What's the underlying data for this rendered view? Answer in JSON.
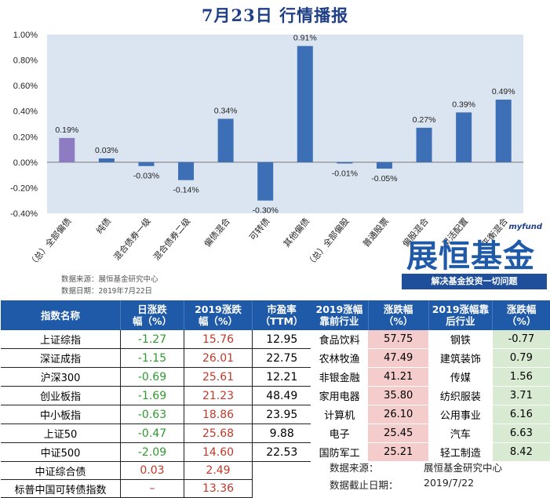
{
  "title": "7月23日  行情播报",
  "chart_data": {
    "type": "bar",
    "categories": [
      "（总）全部偏债",
      "纯债",
      "混合债券一级",
      "混合债券二级",
      "偏债混合",
      "可转债",
      "其他偏债",
      "（总）全部偏股",
      "普通股票",
      "偏股混合",
      "灵活配置",
      "平衡混合"
    ],
    "values": [
      0.19,
      0.03,
      -0.03,
      -0.14,
      0.34,
      -0.3,
      0.91,
      -0.01,
      -0.05,
      0.27,
      0.39,
      0.49
    ],
    "data_labels": [
      "0.19%",
      "0.03%",
      "-0.03%",
      "-0.14%",
      "0.34%",
      "-0.30%",
      "0.91%",
      "-0.01%",
      "-0.05%",
      "0.27%",
      "0.39%",
      "0.49%"
    ],
    "bar_colors": [
      "#8e7cc3",
      "#3d6fb6",
      "#3d6fb6",
      "#3d6fb6",
      "#3d6fb6",
      "#3d6fb6",
      "#3d6fb6",
      "#3d6fb6",
      "#3d6fb6",
      "#3d6fb6",
      "#3d6fb6",
      "#3d6fb6"
    ],
    "yticks": [
      "1.00%",
      "0.80%",
      "0.60%",
      "0.40%",
      "0.20%",
      "0.00%",
      "-0.20%",
      "-0.40%"
    ],
    "ylim": [
      -0.4,
      1.0
    ],
    "plot_bg": "#dbe5f1"
  },
  "notes": {
    "source": "数据来源：展恒基金研究中心",
    "date": "数据日期：2019年7月22日"
  },
  "logo": {
    "small": "myfund",
    "main": "展恒基金",
    "slogan": "解决基金投资一切问题"
  },
  "index_table": {
    "headers": [
      "指数名称",
      "日涨跌\n幅（%）",
      "2019涨跌\n幅（%）",
      "市盈率\n（TTM）"
    ],
    "rows": [
      {
        "name": "上证综指",
        "day": "-1.27",
        "year": "15.76",
        "pe": "12.95"
      },
      {
        "name": "深证成指",
        "day": "-1.15",
        "year": "26.01",
        "pe": "22.75"
      },
      {
        "name": "沪深300",
        "day": "-0.69",
        "year": "25.61",
        "pe": "12.21"
      },
      {
        "name": "创业板指",
        "day": "-1.69",
        "year": "21.23",
        "pe": "48.49"
      },
      {
        "name": "中小板指",
        "day": "-0.63",
        "year": "18.86",
        "pe": "23.95"
      },
      {
        "name": "上证50",
        "day": "-0.47",
        "year": "25.68",
        "pe": "9.88"
      },
      {
        "name": "中证500",
        "day": "-2.09",
        "year": "14.60",
        "pe": "22.53"
      }
    ],
    "bond_rows": [
      {
        "name": "中证综合债",
        "day": "0.03",
        "year": "2.49"
      },
      {
        "name": "标普中国可转债指数",
        "day": "–",
        "year": "13.36"
      }
    ]
  },
  "industry_table": {
    "headers": [
      "2019涨幅\n靠前行业",
      "涨跌幅\n（%）",
      "2019涨幅靠\n后行业",
      "涨跌幅\n（%）"
    ],
    "rows": [
      {
        "top": "食品饮料",
        "top_v": "57.75",
        "bottom": "钢铁",
        "bottom_v": "-0.77"
      },
      {
        "top": "农林牧渔",
        "top_v": "47.49",
        "bottom": "建筑装饰",
        "bottom_v": "0.79"
      },
      {
        "top": "非银金融",
        "top_v": "41.21",
        "bottom": "传媒",
        "bottom_v": "1.56"
      },
      {
        "top": "家用电器",
        "top_v": "35.80",
        "bottom": "纺织服装",
        "bottom_v": "3.71"
      },
      {
        "top": "计算机",
        "top_v": "26.10",
        "bottom": "公用事业",
        "bottom_v": "6.16"
      },
      {
        "top": "电子",
        "top_v": "25.45",
        "bottom": "汽车",
        "bottom_v": "6.63"
      },
      {
        "top": "国防军工",
        "top_v": "25.21",
        "bottom": "轻工制造",
        "bottom_v": "8.42"
      }
    ]
  },
  "footer": {
    "source_label": "数据来源：",
    "source_value": "展恒基金研究中心",
    "date_label": "数据截止日期：",
    "date_value": "2019/7/22"
  },
  "colors": {
    "header_blue": "#1f5aa8",
    "green": "#2e9a2e",
    "red": "#c0392b",
    "pink": "#f4cccc",
    "light_green": "#d9ead3"
  }
}
